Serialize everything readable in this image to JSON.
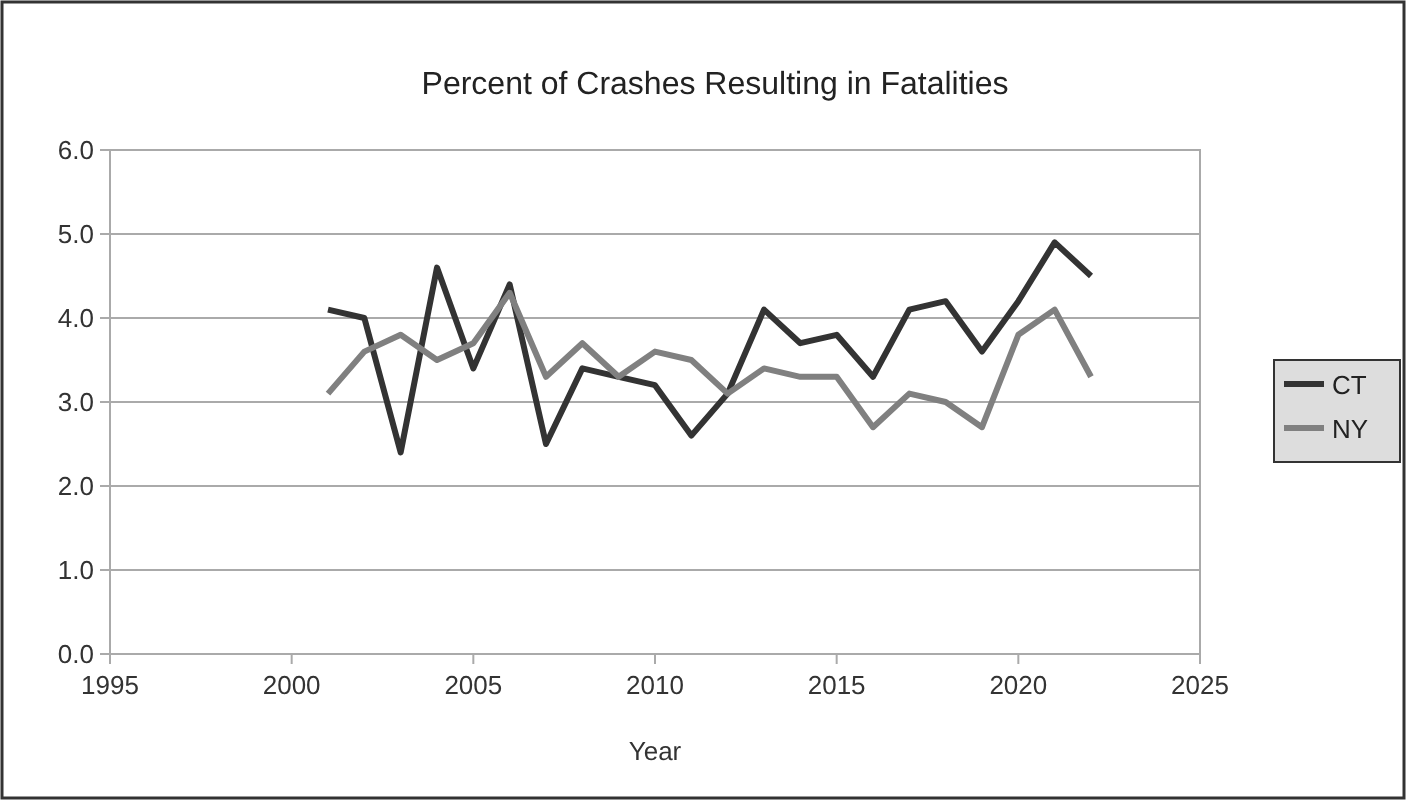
{
  "chart_data": {
    "type": "line",
    "title": "Percent of Crashes Resulting in Fatalities",
    "xlabel": "Year",
    "x": [
      2001,
      2002,
      2003,
      2004,
      2005,
      2006,
      2007,
      2008,
      2009,
      2010,
      2011,
      2012,
      2013,
      2014,
      2015,
      2016,
      2017,
      2018,
      2019,
      2020,
      2021,
      2022
    ],
    "series": [
      {
        "name": "CT",
        "color": "#333333",
        "values": [
          4.1,
          4.0,
          2.4,
          4.6,
          3.4,
          4.4,
          2.5,
          3.4,
          3.3,
          3.2,
          2.6,
          3.1,
          4.1,
          3.7,
          3.8,
          3.3,
          4.1,
          4.2,
          3.6,
          4.2,
          4.9,
          4.5
        ]
      },
      {
        "name": "NY",
        "color": "#808080",
        "values": [
          3.1,
          3.6,
          3.8,
          3.5,
          3.7,
          4.3,
          3.3,
          3.7,
          3.3,
          3.6,
          3.5,
          3.1,
          3.4,
          3.3,
          3.3,
          2.7,
          3.1,
          3.0,
          2.7,
          3.8,
          4.1,
          3.3
        ]
      }
    ],
    "xlim": [
      1995,
      2025
    ],
    "xticks": [
      1995,
      2000,
      2005,
      2010,
      2015,
      2020,
      2025
    ],
    "ylim": [
      0,
      6
    ],
    "yticks": [
      {
        "value": 0,
        "label": "0.0"
      },
      {
        "value": 1,
        "label": "1.0"
      },
      {
        "value": 2,
        "label": "2.0"
      },
      {
        "value": 3,
        "label": "3.0"
      },
      {
        "value": 4,
        "label": "4.0"
      },
      {
        "value": 5,
        "label": "5.0"
      },
      {
        "value": 6,
        "label": "6.0"
      }
    ],
    "grid": "y",
    "legend": "right",
    "marker": "none",
    "line_style": "solid"
  }
}
